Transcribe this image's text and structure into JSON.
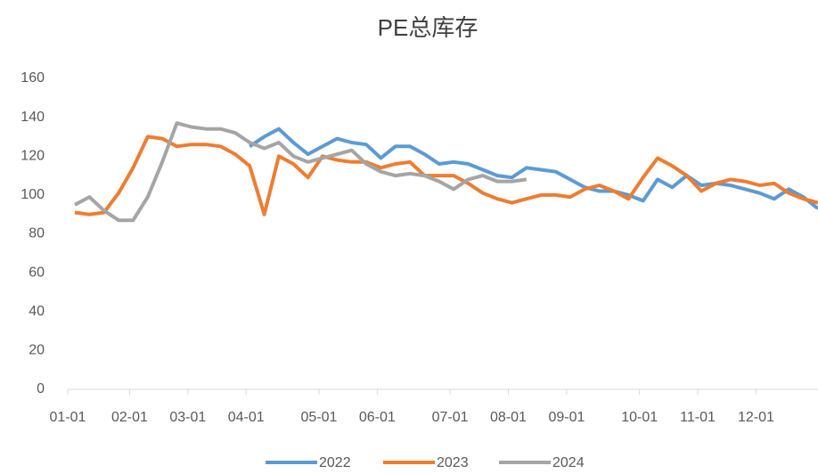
{
  "chart_data": {
    "type": "line",
    "title": "PE总库存",
    "categories": [
      "01-01",
      null,
      null,
      null,
      "02-01",
      null,
      null,
      null,
      "03-01",
      null,
      null,
      null,
      "04-01",
      null,
      null,
      null,
      null,
      "05-01",
      null,
      null,
      null,
      "06-01",
      null,
      null,
      null,
      null,
      "07-01",
      null,
      null,
      null,
      "08-01",
      null,
      null,
      null,
      "09-01",
      null,
      null,
      null,
      null,
      "10-01",
      null,
      null,
      null,
      "11-01",
      null,
      null,
      null,
      "12-01",
      null,
      null,
      null,
      null
    ],
    "series": [
      {
        "name": "2022",
        "color": "#5b9bd5",
        "values": [
          null,
          null,
          null,
          null,
          null,
          null,
          null,
          null,
          null,
          null,
          null,
          null,
          125,
          130,
          134,
          127,
          121,
          125,
          129,
          127,
          126,
          119,
          125,
          125,
          121,
          116,
          117,
          116,
          113,
          110,
          109,
          114,
          113,
          112,
          108,
          104,
          102,
          102,
          100,
          97,
          108,
          104,
          110,
          105,
          106,
          105,
          103,
          101,
          98,
          103,
          99,
          93
        ]
      },
      {
        "name": "2023",
        "color": "#ed7d31",
        "values": [
          91,
          90,
          91,
          101,
          114,
          130,
          129,
          125,
          126,
          126,
          125,
          121,
          115,
          90,
          120,
          116,
          109,
          120,
          118,
          117,
          117,
          114,
          116,
          117,
          110,
          110,
          110,
          106,
          101,
          98,
          96,
          98,
          100,
          100,
          99,
          103,
          105,
          102,
          98,
          109,
          119,
          115,
          110,
          102,
          106,
          108,
          107,
          105,
          106,
          101,
          98,
          96
        ]
      },
      {
        "name": "2024",
        "color": "#a5a5a5",
        "values": [
          95,
          99,
          92,
          87,
          87,
          99,
          117,
          137,
          135,
          134,
          134,
          132,
          127,
          124,
          127,
          120,
          117,
          119,
          121,
          123,
          116,
          112,
          110,
          111,
          110,
          107,
          103,
          108,
          110,
          107,
          107,
          108,
          null,
          null,
          null,
          null,
          null,
          null,
          null,
          null,
          null,
          null,
          null,
          null,
          null,
          null,
          null,
          null,
          null,
          null,
          null,
          null
        ]
      }
    ],
    "ylim": [
      0,
      160
    ],
    "yticks": [
      0,
      20,
      40,
      60,
      80,
      100,
      120,
      140,
      160
    ],
    "legend": "bottom"
  }
}
